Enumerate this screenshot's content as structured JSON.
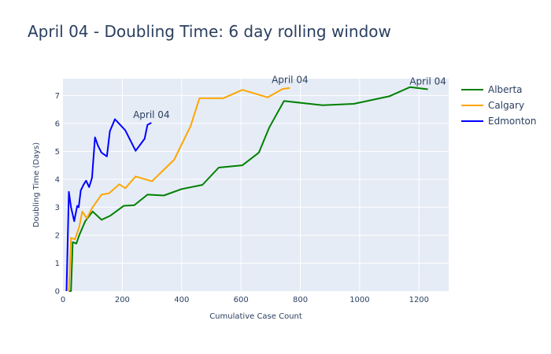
{
  "chart_data": {
    "type": "line",
    "title": "April 04 - Doubling Time: 6 day rolling window",
    "xlabel": "Cumulative Case Count",
    "ylabel": "Doubling Time (Days)",
    "xlim": [
      0,
      1300
    ],
    "ylim": [
      0,
      7.6
    ],
    "xticks": [
      0,
      200,
      400,
      600,
      800,
      1000,
      1200
    ],
    "yticks": [
      0,
      1,
      2,
      3,
      4,
      5,
      6,
      7
    ],
    "grid": true,
    "legend": "top-right",
    "series": [
      {
        "name": "Alberta",
        "color": "#008000",
        "x": [
          20,
          27,
          33,
          45,
          55,
          75,
          100,
          130,
          160,
          205,
          240,
          285,
          340,
          400,
          470,
          525,
          605,
          660,
          695,
          745,
          875,
          980,
          1100,
          1170,
          1230
        ],
        "y": [
          0,
          0,
          1.75,
          1.7,
          2.0,
          2.5,
          2.85,
          2.55,
          2.7,
          3.05,
          3.07,
          3.45,
          3.42,
          3.65,
          3.8,
          4.42,
          4.5,
          4.95,
          5.85,
          6.8,
          6.65,
          6.7,
          6.97,
          7.3,
          7.22
        ]
      },
      {
        "name": "Calgary",
        "color": "#FFA500",
        "x": [
          20,
          27,
          40,
          55,
          65,
          80,
          100,
          130,
          155,
          190,
          210,
          245,
          300,
          375,
          400,
          430,
          460,
          540,
          605,
          690,
          740,
          765
        ],
        "y": [
          0,
          1.9,
          1.85,
          2.3,
          2.85,
          2.6,
          3.0,
          3.45,
          3.5,
          3.82,
          3.68,
          4.1,
          3.93,
          4.7,
          5.25,
          5.9,
          6.9,
          6.9,
          7.2,
          6.93,
          7.23,
          7.27
        ]
      },
      {
        "name": "Edmonton",
        "color": "#0000FF",
        "x": [
          12,
          20,
          27,
          38,
          48,
          53,
          60,
          70,
          78,
          88,
          98,
          108,
          118,
          130,
          148,
          158,
          175,
          210,
          245,
          275,
          285,
          298
        ],
        "y": [
          0,
          3.55,
          3.0,
          2.5,
          3.05,
          3.0,
          3.6,
          3.82,
          3.95,
          3.72,
          4.05,
          5.5,
          5.2,
          4.95,
          4.82,
          5.72,
          6.15,
          5.75,
          5.02,
          5.45,
          5.95,
          6.02
        ]
      }
    ],
    "annotations": [
      {
        "text": "April 04",
        "x": 1230,
        "y": 7.22
      },
      {
        "text": "April 04",
        "x": 765,
        "y": 7.27
      },
      {
        "text": "April 04",
        "x": 298,
        "y": 6.02
      }
    ]
  }
}
